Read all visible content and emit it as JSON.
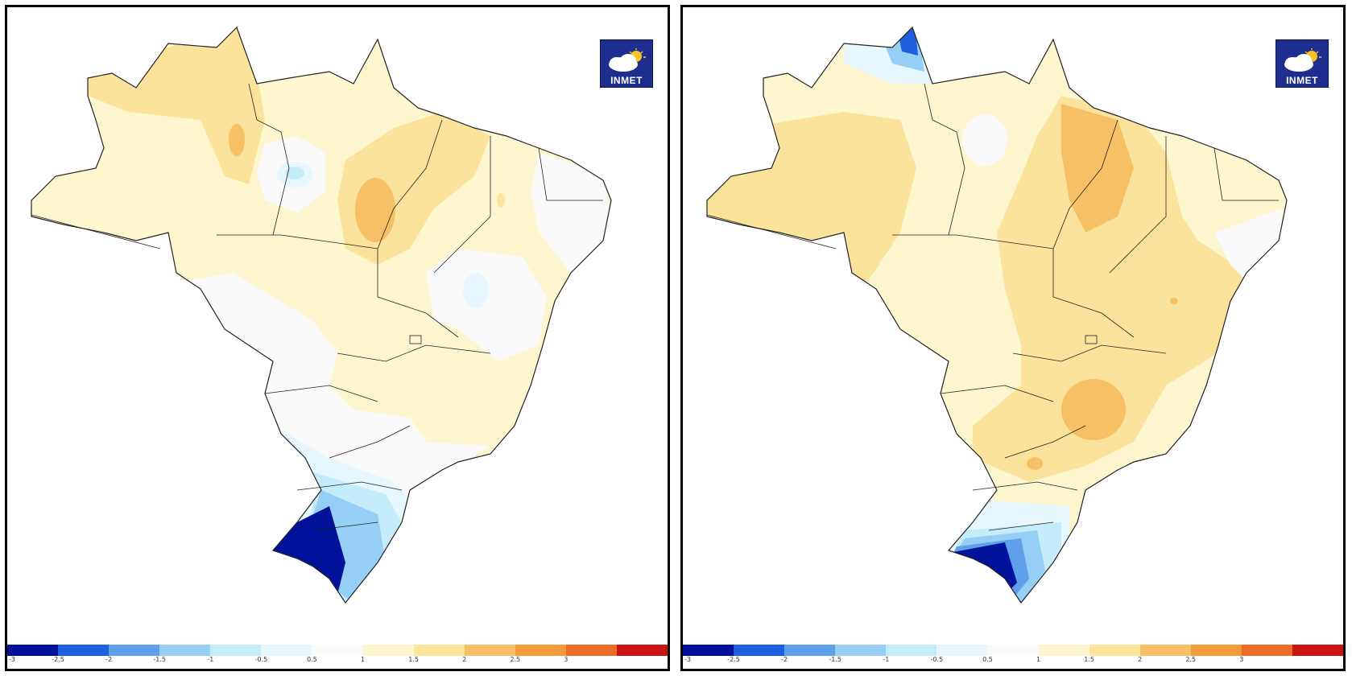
{
  "logo_text": "INMET",
  "colorbar": {
    "ticks": [
      "-3",
      "-2.5",
      "-2",
      "-1.5",
      "-1",
      "-0.5",
      "0.5",
      "1",
      "1.5",
      "2",
      "2.5",
      "3"
    ],
    "colors": [
      "#00129a",
      "#1d5fdc",
      "#5ea0ea",
      "#95cff5",
      "#c5ecfa",
      "#e6f8fd",
      "#fafafa",
      "#fdf6cf",
      "#fbe39c",
      "#f7c064",
      "#f39a3a",
      "#ec6b25",
      "#cc1111"
    ]
  },
  "maps": [
    {
      "id": "left",
      "anomaly_regions": [
        {
          "area": "north-amazon-west",
          "level": "1.5 to 2",
          "color": "#fbe39c"
        },
        {
          "area": "amazon-centre",
          "level": "0.5 to 1",
          "color": "#fdf6cf"
        },
        {
          "area": "para-east",
          "level": "1.5 to 2",
          "color": "#fbe39c"
        },
        {
          "area": "para-core",
          "level": "2 to 2.5",
          "color": "#f7c064"
        },
        {
          "area": "amazonas-east-cold-spot",
          "level": "-1 to -0.5",
          "color": "#c5ecfa"
        },
        {
          "area": "bahia-cold-spot",
          "level": "-1 to -0.5",
          "color": "#c5ecfa"
        },
        {
          "area": "centre-west-neutral",
          "level": "-0.5 to 0.5",
          "color": "#fafafa"
        },
        {
          "area": "south-gradient",
          "level": "-2 to -0.5",
          "color": "#95cff5"
        },
        {
          "area": "rio-grande-do-sul",
          "level": "< -3",
          "color": "#00129a"
        }
      ]
    },
    {
      "id": "right",
      "anomaly_regions": [
        {
          "area": "amazon-west",
          "level": "1.5 to 2",
          "color": "#fbe39c"
        },
        {
          "area": "north-centre",
          "level": "0.5 to 1",
          "color": "#fdf6cf"
        },
        {
          "area": "amapa-cold",
          "level": "-2.5 to -1",
          "color": "#5ea0ea"
        },
        {
          "area": "tocantins-goias-band",
          "level": "1.5 to 2",
          "color": "#fbe39c"
        },
        {
          "area": "tocantins-core",
          "level": "2 to 2.5",
          "color": "#f7c064"
        },
        {
          "area": "goias-core",
          "level": "2 to 2.5",
          "color": "#f7c064"
        },
        {
          "area": "south-gradient",
          "level": "-2 to -0.5",
          "color": "#95cff5"
        },
        {
          "area": "rio-grande-do-sul",
          "level": "< -3",
          "color": "#00129a"
        }
      ]
    }
  ]
}
